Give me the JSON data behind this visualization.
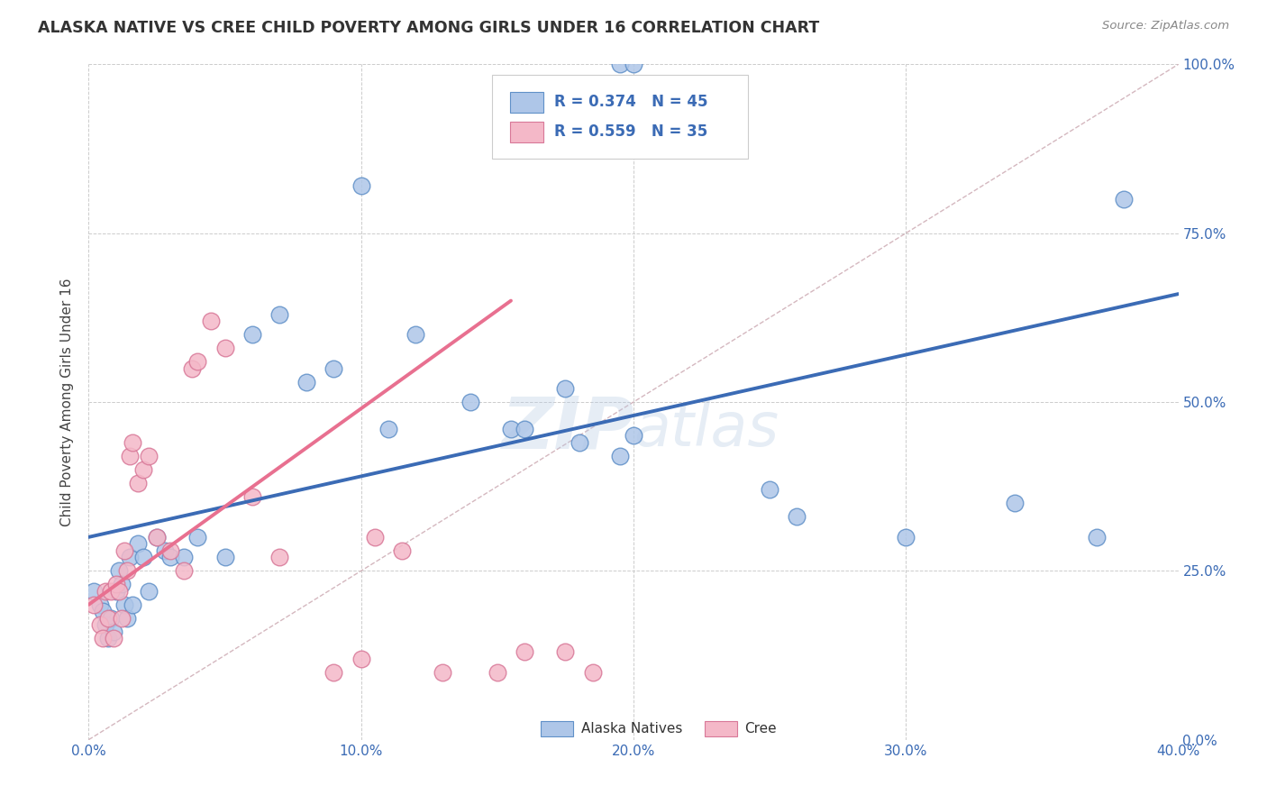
{
  "title": "ALASKA NATIVE VS CREE CHILD POVERTY AMONG GIRLS UNDER 16 CORRELATION CHART",
  "source": "Source: ZipAtlas.com",
  "ylabel": "Child Poverty Among Girls Under 16",
  "xlabel_ticks": [
    "0.0%",
    "10.0%",
    "20.0%",
    "30.0%",
    "40.0%"
  ],
  "xlabel_vals": [
    0.0,
    0.1,
    0.2,
    0.3,
    0.4
  ],
  "ylabel_ticks": [
    "0.0%",
    "25.0%",
    "50.0%",
    "75.0%",
    "100.0%"
  ],
  "ylabel_vals": [
    0.0,
    0.25,
    0.5,
    0.75,
    1.0
  ],
  "xlim": [
    0.0,
    0.4
  ],
  "ylim": [
    0.0,
    1.0
  ],
  "alaska_line_x": [
    0.0,
    0.4
  ],
  "alaska_line_y": [
    0.3,
    0.66
  ],
  "cree_line_x": [
    0.0,
    0.155
  ],
  "cree_line_y": [
    0.2,
    0.65
  ],
  "alaska_line_color": "#3b6bb5",
  "cree_line_color": "#e87090",
  "diagonal_line_color": "#d0b0b8",
  "watermark_color": "#b8cce4",
  "watermark_alpha": 0.35,
  "background_color": "#ffffff",
  "grid_color": "#cccccc",
  "scatter_alpha": 0.85,
  "alaska_face_color": "#aec6e8",
  "alaska_edge_color": "#6090c8",
  "cree_face_color": "#f4b8c8",
  "cree_edge_color": "#d87898",
  "alaska_x": [
    0.002,
    0.004,
    0.005,
    0.006,
    0.007,
    0.008,
    0.009,
    0.01,
    0.011,
    0.012,
    0.013,
    0.014,
    0.015,
    0.016,
    0.018,
    0.02,
    0.022,
    0.025,
    0.028,
    0.03,
    0.035,
    0.04,
    0.05,
    0.06,
    0.07,
    0.08,
    0.09,
    0.1,
    0.11,
    0.12,
    0.14,
    0.155,
    0.16,
    0.175,
    0.18,
    0.195,
    0.2,
    0.25,
    0.26,
    0.3,
    0.34,
    0.37,
    0.38,
    0.195,
    0.2
  ],
  "alaska_y": [
    0.22,
    0.2,
    0.19,
    0.17,
    0.15,
    0.18,
    0.16,
    0.22,
    0.25,
    0.23,
    0.2,
    0.18,
    0.27,
    0.2,
    0.29,
    0.27,
    0.22,
    0.3,
    0.28,
    0.27,
    0.27,
    0.3,
    0.27,
    0.6,
    0.63,
    0.53,
    0.55,
    0.82,
    0.46,
    0.6,
    0.5,
    0.46,
    0.46,
    0.52,
    0.44,
    0.42,
    0.45,
    0.37,
    0.33,
    0.3,
    0.35,
    0.3,
    0.8,
    1.0,
    1.0
  ],
  "cree_x": [
    0.002,
    0.004,
    0.005,
    0.006,
    0.007,
    0.008,
    0.009,
    0.01,
    0.011,
    0.012,
    0.013,
    0.014,
    0.015,
    0.016,
    0.018,
    0.02,
    0.022,
    0.025,
    0.03,
    0.035,
    0.038,
    0.04,
    0.045,
    0.05,
    0.06,
    0.07,
    0.09,
    0.1,
    0.105,
    0.115,
    0.13,
    0.15,
    0.16,
    0.175,
    0.185
  ],
  "cree_y": [
    0.2,
    0.17,
    0.15,
    0.22,
    0.18,
    0.22,
    0.15,
    0.23,
    0.22,
    0.18,
    0.28,
    0.25,
    0.42,
    0.44,
    0.38,
    0.4,
    0.42,
    0.3,
    0.28,
    0.25,
    0.55,
    0.56,
    0.62,
    0.58,
    0.36,
    0.27,
    0.1,
    0.12,
    0.3,
    0.28,
    0.1,
    0.1,
    0.13,
    0.13,
    0.1
  ]
}
